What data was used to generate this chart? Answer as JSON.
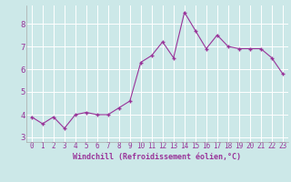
{
  "xlabel": "Windchill (Refroidissement éolien,°C)",
  "x": [
    0,
    1,
    2,
    3,
    4,
    5,
    6,
    7,
    8,
    9,
    10,
    11,
    12,
    13,
    14,
    15,
    16,
    17,
    18,
    19,
    20,
    21,
    22,
    23
  ],
  "y": [
    3.9,
    3.6,
    3.9,
    3.4,
    4.0,
    4.1,
    4.0,
    4.0,
    4.3,
    4.6,
    6.3,
    6.6,
    7.2,
    6.5,
    8.5,
    7.7,
    6.9,
    7.5,
    7.0,
    6.9,
    6.9,
    6.9,
    6.5,
    5.8
  ],
  "line_color": "#993399",
  "marker_color": "#993399",
  "bg_color": "#cce8e8",
  "grid_color": "#ffffff",
  "tick_label_color": "#993399",
  "xlabel_color": "#993399",
  "ylim": [
    2.8,
    8.8
  ],
  "xlim": [
    -0.5,
    23.5
  ],
  "yticks": [
    3,
    4,
    5,
    6,
    7,
    8
  ],
  "xticks": [
    0,
    1,
    2,
    3,
    4,
    5,
    6,
    7,
    8,
    9,
    10,
    11,
    12,
    13,
    14,
    15,
    16,
    17,
    18,
    19,
    20,
    21,
    22,
    23
  ],
  "xlabel_fontsize": 6.0,
  "tick_fontsize": 5.5,
  "ytick_fontsize": 6.5,
  "marker_size": 3.5
}
